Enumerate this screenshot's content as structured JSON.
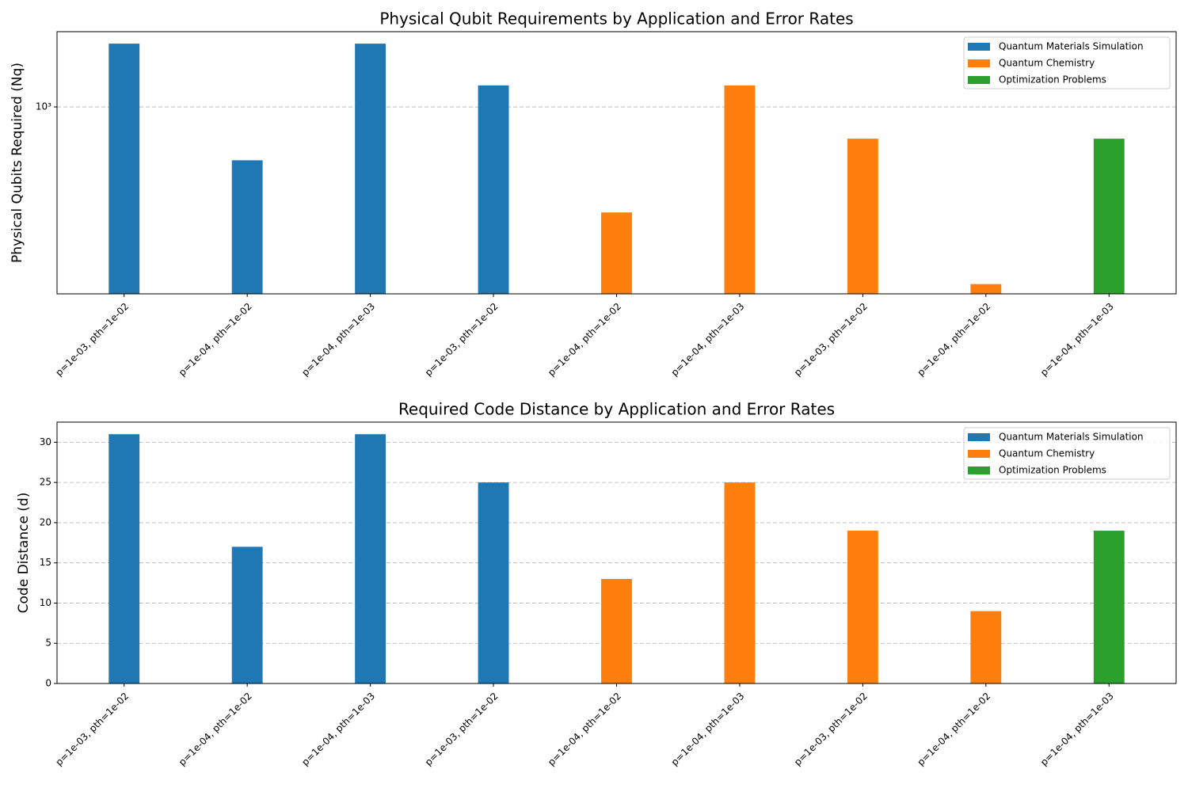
{
  "chart_data": [
    {
      "type": "bar",
      "title": "Physical Qubit Requirements by Application and Error Rates",
      "ylabel": "Physical Qubits Required (Nq)",
      "categories": [
        "p=1e-03, pth=1e-02",
        "p=1e-04, pth=1e-02",
        "p=1e-04, pth=1e-03",
        "p=1e-03, pth=1e-02",
        "p=1e-04, pth=1e-02",
        "p=1e-04, pth=1e-03",
        "p=1e-03, pth=1e-02",
        "p=1e-04, pth=1e-02",
        "p=1e-04, pth=1e-03"
      ],
      "series": [
        {
          "name": "Quantum Materials Simulation",
          "color": "#1f77b4",
          "values": [
            1921,
            577,
            1921,
            1249,
            null,
            null,
            null,
            null,
            null
          ]
        },
        {
          "name": "Quantum Chemistry",
          "color": "#ff7f0e",
          "values": [
            null,
            null,
            null,
            null,
            337,
            1249,
            721,
            161,
            null
          ]
        },
        {
          "name": "Optimization Problems",
          "color": "#2ca02c",
          "values": [
            null,
            null,
            null,
            null,
            null,
            null,
            null,
            null,
            721
          ]
        }
      ],
      "ylim": [
        145.6,
        2173
      ],
      "yticks": [
        {
          "value": 1000,
          "label": "10³"
        }
      ],
      "log": true,
      "grid": true,
      "legend": "upper right"
    },
    {
      "type": "bar",
      "title": "Required Code Distance by Application and Error Rates",
      "ylabel": "Code Distance (d)",
      "categories": [
        "p=1e-03, pth=1e-02",
        "p=1e-04, pth=1e-02",
        "p=1e-04, pth=1e-03",
        "p=1e-03, pth=1e-02",
        "p=1e-04, pth=1e-02",
        "p=1e-04, pth=1e-03",
        "p=1e-03, pth=1e-02",
        "p=1e-04, pth=1e-02",
        "p=1e-04, pth=1e-03"
      ],
      "series": [
        {
          "name": "Quantum Materials Simulation",
          "color": "#1f77b4",
          "values": [
            31,
            17,
            31,
            25,
            null,
            null,
            null,
            null,
            null
          ]
        },
        {
          "name": "Quantum Chemistry",
          "color": "#ff7f0e",
          "values": [
            null,
            null,
            null,
            null,
            13,
            25,
            19,
            9,
            null
          ]
        },
        {
          "name": "Optimization Problems",
          "color": "#2ca02c",
          "values": [
            null,
            null,
            null,
            null,
            null,
            null,
            null,
            null,
            19
          ]
        }
      ],
      "ylim": [
        0,
        32.5
      ],
      "yticks": [
        0,
        5,
        10,
        15,
        20,
        25,
        30
      ],
      "log": false,
      "grid": true,
      "legend": "upper right"
    }
  ]
}
